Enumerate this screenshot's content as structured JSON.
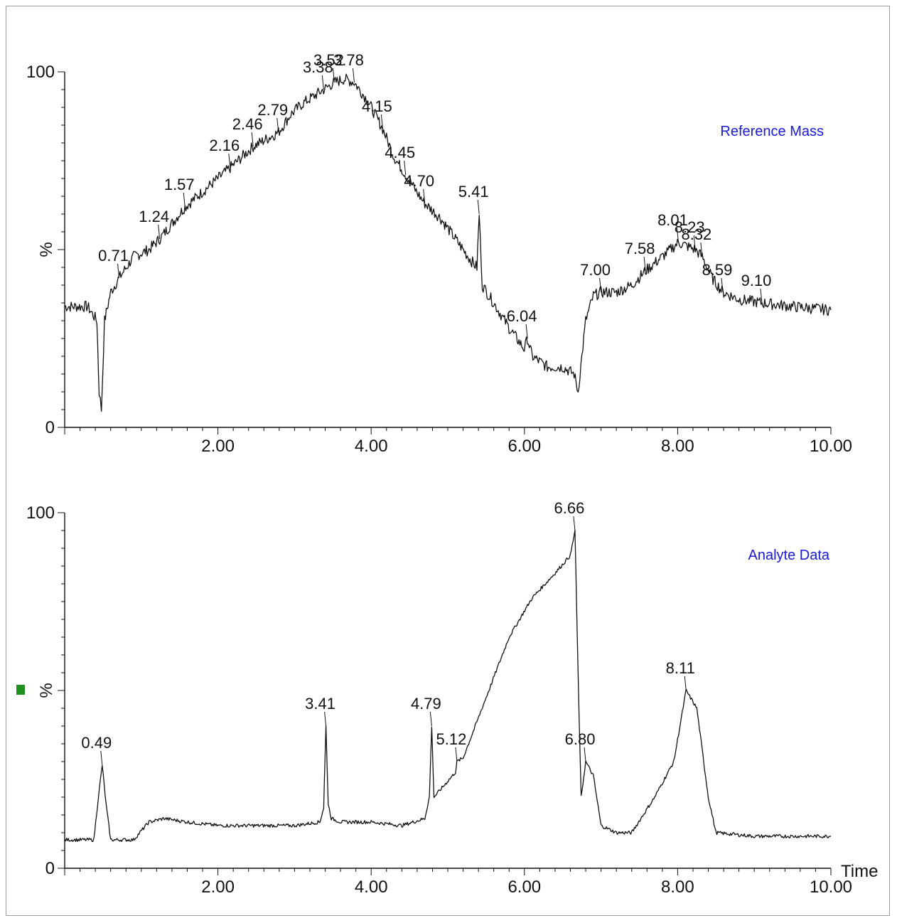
{
  "chart_data": [
    {
      "type": "line",
      "title": "Reference Mass",
      "xlabel": "",
      "ylabel": "%",
      "xlim": [
        0,
        10
      ],
      "ylim": [
        0,
        100
      ],
      "x_ticks": [
        "2.00",
        "4.00",
        "6.00",
        "8.00",
        "10.00"
      ],
      "y_ticks": [
        "0",
        "%",
        "100"
      ],
      "title_color": "#1a1adb",
      "series": [
        {
          "x": [
            0.0,
            0.3,
            0.42,
            0.45,
            0.48,
            0.52,
            0.6,
            0.71,
            0.9,
            1.1,
            1.24,
            1.57,
            2.0,
            2.16,
            2.46,
            2.79,
            2.95,
            3.1,
            3.38,
            3.52,
            3.65,
            3.78,
            3.95,
            4.15,
            4.3,
            4.45,
            4.6,
            4.7,
            4.9,
            5.1,
            5.3,
            5.38,
            5.41,
            5.45,
            5.6,
            5.8,
            6.0,
            6.04,
            6.1,
            6.3,
            6.5,
            6.65,
            6.7,
            6.8,
            6.9,
            7.0,
            7.2,
            7.4,
            7.58,
            7.8,
            8.01,
            8.23,
            8.32,
            8.45,
            8.59,
            8.8,
            9.1,
            9.5,
            10.0
          ],
          "y": [
            34,
            34,
            30,
            10,
            5,
            30,
            38,
            42,
            48,
            50,
            53,
            62,
            70,
            73,
            79,
            83,
            88,
            91,
            95,
            97,
            98,
            97,
            92,
            84,
            76,
            71,
            66,
            63,
            59,
            53,
            47,
            45,
            60,
            40,
            35,
            28,
            22,
            25,
            20,
            17,
            17,
            15,
            10,
            30,
            37,
            38,
            38,
            40,
            44,
            48,
            52,
            50,
            48,
            42,
            38,
            36,
            35,
            34,
            33
          ]
        }
      ],
      "peak_labels": [
        {
          "x": 0.71,
          "y": 42,
          "text": "0.71"
        },
        {
          "x": 1.24,
          "y": 53,
          "text": "1.24"
        },
        {
          "x": 1.57,
          "y": 62,
          "text": "1.57"
        },
        {
          "x": 2.16,
          "y": 73,
          "text": "2.16"
        },
        {
          "x": 2.46,
          "y": 79,
          "text": "2.46"
        },
        {
          "x": 2.79,
          "y": 83,
          "text": "2.79"
        },
        {
          "x": 3.38,
          "y": 95,
          "text": "3.38"
        },
        {
          "x": 3.52,
          "y": 97,
          "text": "3.52"
        },
        {
          "x": 3.78,
          "y": 97,
          "text": "3.78"
        },
        {
          "x": 4.15,
          "y": 84,
          "text": "4.15"
        },
        {
          "x": 4.45,
          "y": 71,
          "text": "4.45"
        },
        {
          "x": 4.7,
          "y": 63,
          "text": "4.70"
        },
        {
          "x": 5.41,
          "y": 60,
          "text": "5.41"
        },
        {
          "x": 6.04,
          "y": 25,
          "text": "6.04"
        },
        {
          "x": 7.0,
          "y": 38,
          "text": "7.00"
        },
        {
          "x": 7.58,
          "y": 44,
          "text": "7.58"
        },
        {
          "x": 8.01,
          "y": 52,
          "text": "8.01"
        },
        {
          "x": 8.23,
          "y": 50,
          "text": "8.23"
        },
        {
          "x": 8.32,
          "y": 48,
          "text": "8.32"
        },
        {
          "x": 8.59,
          "y": 38,
          "text": "8.59"
        },
        {
          "x": 9.1,
          "y": 35,
          "text": "9.10"
        }
      ]
    },
    {
      "type": "line",
      "title": "Analyte Data",
      "xlabel": "Time",
      "ylabel": "%",
      "xlim": [
        0,
        10
      ],
      "ylim": [
        0,
        100
      ],
      "x_ticks": [
        "2.00",
        "4.00",
        "6.00",
        "8.00",
        "10.00"
      ],
      "y_ticks": [
        "0",
        "%",
        "100"
      ],
      "title_color": "#1a1adb",
      "marker_color": "#1f8f1f",
      "series": [
        {
          "x": [
            0.0,
            0.38,
            0.44,
            0.49,
            0.54,
            0.6,
            0.9,
            1.1,
            1.3,
            1.6,
            2.0,
            2.5,
            3.0,
            3.33,
            3.38,
            3.41,
            3.44,
            3.48,
            3.6,
            4.0,
            4.4,
            4.7,
            4.76,
            4.79,
            4.82,
            4.9,
            5.1,
            5.12,
            5.2,
            5.5,
            5.8,
            6.1,
            6.4,
            6.6,
            6.66,
            6.7,
            6.74,
            6.8,
            6.9,
            7.0,
            7.2,
            7.4,
            7.7,
            7.95,
            8.11,
            8.25,
            8.4,
            8.5,
            9.0,
            9.5,
            10.0
          ],
          "y": [
            8,
            8,
            20,
            29,
            18,
            8,
            8,
            13,
            14,
            13,
            12,
            12,
            12,
            13,
            17,
            40,
            18,
            14,
            13,
            13,
            12,
            14,
            20,
            40,
            20,
            22,
            27,
            30,
            31,
            48,
            65,
            76,
            83,
            88,
            95,
            55,
            20,
            30,
            26,
            12,
            10,
            10,
            20,
            30,
            50,
            45,
            20,
            10,
            9,
            9,
            9
          ]
        }
      ],
      "peak_labels": [
        {
          "x": 0.49,
          "y": 29,
          "text": "0.49"
        },
        {
          "x": 3.41,
          "y": 40,
          "text": "3.41"
        },
        {
          "x": 4.79,
          "y": 40,
          "text": "4.79"
        },
        {
          "x": 5.12,
          "y": 30,
          "text": "5.12"
        },
        {
          "x": 6.66,
          "y": 95,
          "text": "6.66"
        },
        {
          "x": 6.8,
          "y": 30,
          "text": "6.80"
        },
        {
          "x": 8.11,
          "y": 50,
          "text": "8.11"
        }
      ]
    }
  ]
}
